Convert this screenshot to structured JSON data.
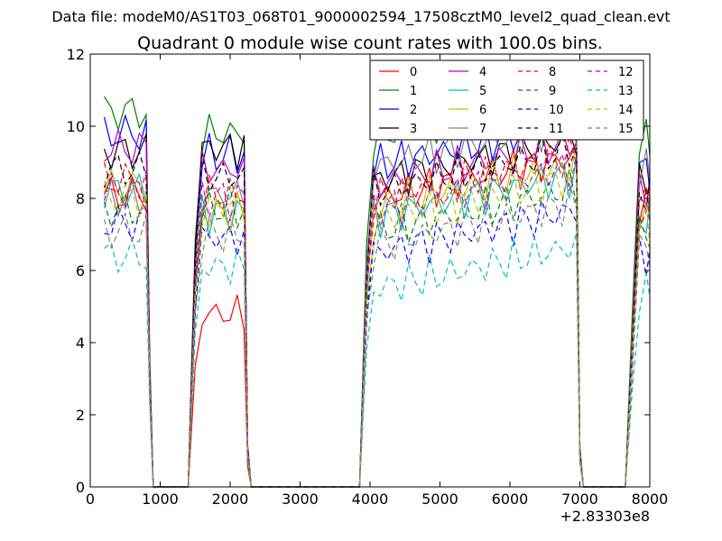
{
  "figure": {
    "suptitle": "Data file: modeM0/AS1T03_068T01_9000002594_17508cztM0_level2_quad_clean.evt"
  },
  "chart_data": {
    "type": "line",
    "title": "Quadrant 0 module wise count rates with 100.0s bins.",
    "xlabel": "",
    "ylabel": "",
    "xlim": [
      0,
      8000
    ],
    "ylim": [
      0,
      12
    ],
    "x_ticks": [
      0,
      1000,
      2000,
      3000,
      4000,
      5000,
      6000,
      7000,
      8000
    ],
    "y_ticks": [
      0,
      2,
      4,
      6,
      8,
      10,
      12
    ],
    "x_offset_label": "+2.83303e8",
    "grid": false,
    "legend": {
      "placement": "top-right",
      "columns": 4
    },
    "segments": [
      {
        "x": [
          200,
          300,
          400,
          500,
          600,
          700,
          800,
          850,
          900
        ]
      },
      {
        "x": [
          1400,
          1500,
          1600,
          1700,
          1800,
          1900,
          2000,
          2100,
          2200,
          2250,
          2300
        ]
      },
      {
        "x": [
          3850,
          3950,
          4050,
          4150,
          4250,
          4350,
          4450,
          4550,
          4650,
          4750,
          4850,
          4950,
          5050,
          5150,
          5250,
          5350,
          5450,
          5550,
          5650,
          5750,
          5850,
          5950,
          6050,
          6150,
          6250,
          6350,
          6450,
          6550,
          6650,
          6750,
          6850,
          6950,
          7000,
          7050
        ]
      },
      {
        "x": [
          7650,
          7750,
          7850,
          7950,
          8000
        ]
      }
    ],
    "series": [
      {
        "name": "0",
        "color": "#ff0000",
        "dash": "solid",
        "levels": [
          8.1,
          4.8,
          7.9
        ]
      },
      {
        "name": "1",
        "color": "#008000",
        "dash": "solid",
        "levels": [
          10.4,
          9.8,
          9.6
        ]
      },
      {
        "name": "2",
        "color": "#0000ff",
        "dash": "solid",
        "levels": [
          9.8,
          9.2,
          8.8
        ]
      },
      {
        "name": "3",
        "color": "#000000",
        "dash": "solid",
        "levels": [
          9.3,
          9.4,
          8.4
        ]
      },
      {
        "name": "4",
        "color": "#bf00bf",
        "dash": "solid",
        "levels": [
          9.4,
          8.8,
          8.3
        ]
      },
      {
        "name": "5",
        "color": "#00bfbf",
        "dash": "solid",
        "levels": [
          8.2,
          7.6,
          7.4
        ]
      },
      {
        "name": "6",
        "color": "#bfbf00",
        "dash": "solid",
        "levels": [
          8.3,
          7.6,
          7.7
        ]
      },
      {
        "name": "7",
        "color": "#808080",
        "dash": "solid",
        "levels": [
          8.0,
          8.1,
          8.8
        ]
      },
      {
        "name": "8",
        "color": "#ff0000",
        "dash": "dashed",
        "levels": [
          8.5,
          8.1,
          7.9
        ]
      },
      {
        "name": "9",
        "color": "#008000",
        "dash": "dashed",
        "levels": [
          7.7,
          7.7,
          7.0
        ]
      },
      {
        "name": "10",
        "color": "#0000ff",
        "dash": "dashed",
        "levels": [
          7.3,
          6.9,
          6.4
        ]
      },
      {
        "name": "11",
        "color": "#000000",
        "dash": "dashed",
        "levels": [
          8.8,
          8.6,
          8.1
        ]
      },
      {
        "name": "12",
        "color": "#bf00bf",
        "dash": "dashed",
        "levels": [
          8.2,
          8.0,
          7.6
        ]
      },
      {
        "name": "13",
        "color": "#00bfbf",
        "dash": "dashed",
        "levels": [
          6.4,
          6.1,
          5.4
        ]
      },
      {
        "name": "14",
        "color": "#bfbf00",
        "dash": "dashed",
        "levels": [
          8.0,
          7.8,
          7.3
        ]
      },
      {
        "name": "15",
        "color": "#808080",
        "dash": "dashed",
        "levels": [
          7.1,
          7.0,
          6.6
        ]
      }
    ]
  }
}
